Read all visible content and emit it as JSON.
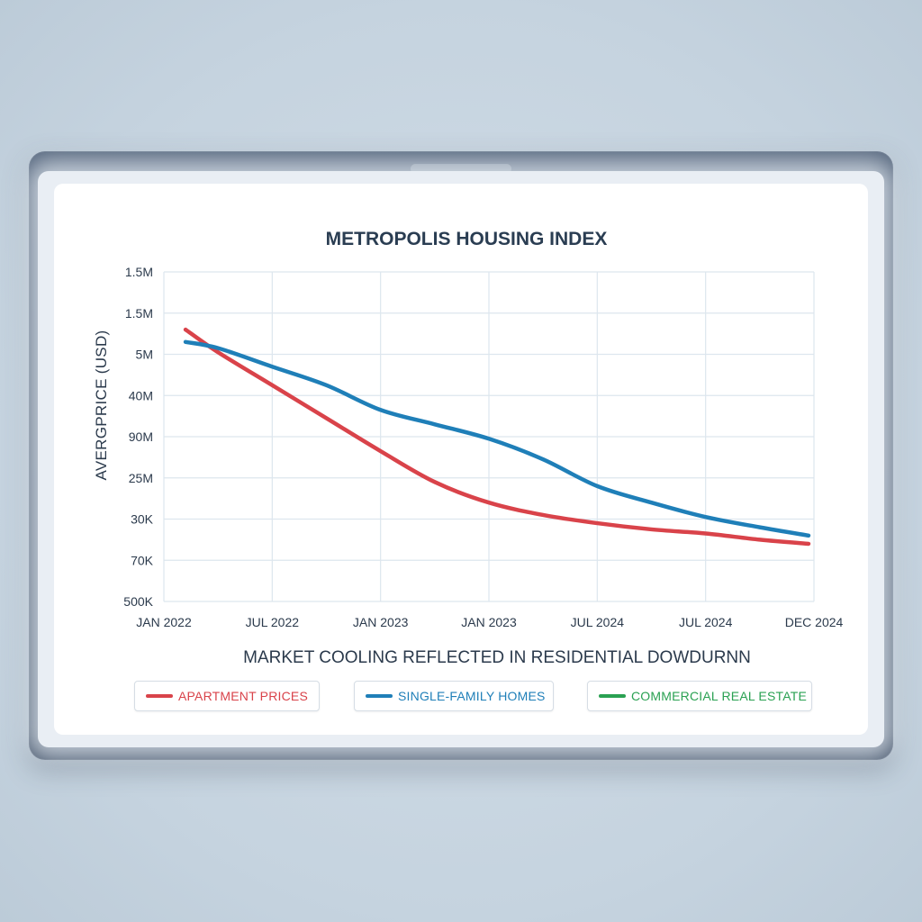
{
  "colors": {
    "apartment": "#d9434a",
    "single_family": "#1f7fb8",
    "commercial": "#2aa152",
    "grid": "#dde6ee",
    "text": "#2b3a4c"
  },
  "legend": [
    {
      "label": "APARTMENT PRICES",
      "color": "#d9434a"
    },
    {
      "label": "SINGLE-FAMILY HOMES",
      "color": "#1f7fb8"
    },
    {
      "label": "COMMERCIAL REAL ESTATE",
      "color": "#2aa152"
    }
  ],
  "chart_data": {
    "type": "line",
    "title": "METROPOLIS HOUSING INDEX",
    "xlabel": "",
    "ylabel": "AVERGPRICE (USD)",
    "caption": "MARKET COOLING REFLECTED IN RESIDENTIAL DOWDURNN",
    "x_tick_labels": [
      "JAN 2022",
      "JUL 2022",
      "JAN 2023",
      "JAN 2023",
      "JUL 2024",
      "JUL 2024",
      "DEC 2024"
    ],
    "y_tick_labels": [
      "1.5M",
      "1.5M",
      "5M",
      "40M",
      "90M",
      "25M",
      "30K",
      "70K",
      "500K"
    ],
    "x_range": [
      0,
      6
    ],
    "y_range_ticks": [
      0,
      8
    ],
    "grid": true,
    "legend_position": "bottom",
    "series": [
      {
        "name": "APARTMENT PRICES",
        "color": "#d9434a",
        "points": [
          [
            0.2,
            1.4
          ],
          [
            0.5,
            1.95
          ],
          [
            1.0,
            2.75
          ],
          [
            1.5,
            3.55
          ],
          [
            2.0,
            4.35
          ],
          [
            2.5,
            5.1
          ],
          [
            3.0,
            5.6
          ],
          [
            3.5,
            5.9
          ],
          [
            4.0,
            6.1
          ],
          [
            4.5,
            6.25
          ],
          [
            5.0,
            6.35
          ],
          [
            5.5,
            6.5
          ],
          [
            5.95,
            6.6
          ]
        ]
      },
      {
        "name": "SINGLE-FAMILY HOMES",
        "color": "#1f7fb8",
        "points": [
          [
            0.2,
            1.7
          ],
          [
            0.5,
            1.85
          ],
          [
            1.0,
            2.3
          ],
          [
            1.5,
            2.75
          ],
          [
            2.0,
            3.35
          ],
          [
            2.5,
            3.7
          ],
          [
            3.0,
            4.05
          ],
          [
            3.5,
            4.55
          ],
          [
            4.0,
            5.2
          ],
          [
            4.5,
            5.6
          ],
          [
            5.0,
            5.95
          ],
          [
            5.5,
            6.2
          ],
          [
            5.95,
            6.4
          ]
        ]
      },
      {
        "name": "COMMERCIAL REAL ESTATE",
        "color": "#2aa152",
        "points": []
      }
    ]
  }
}
